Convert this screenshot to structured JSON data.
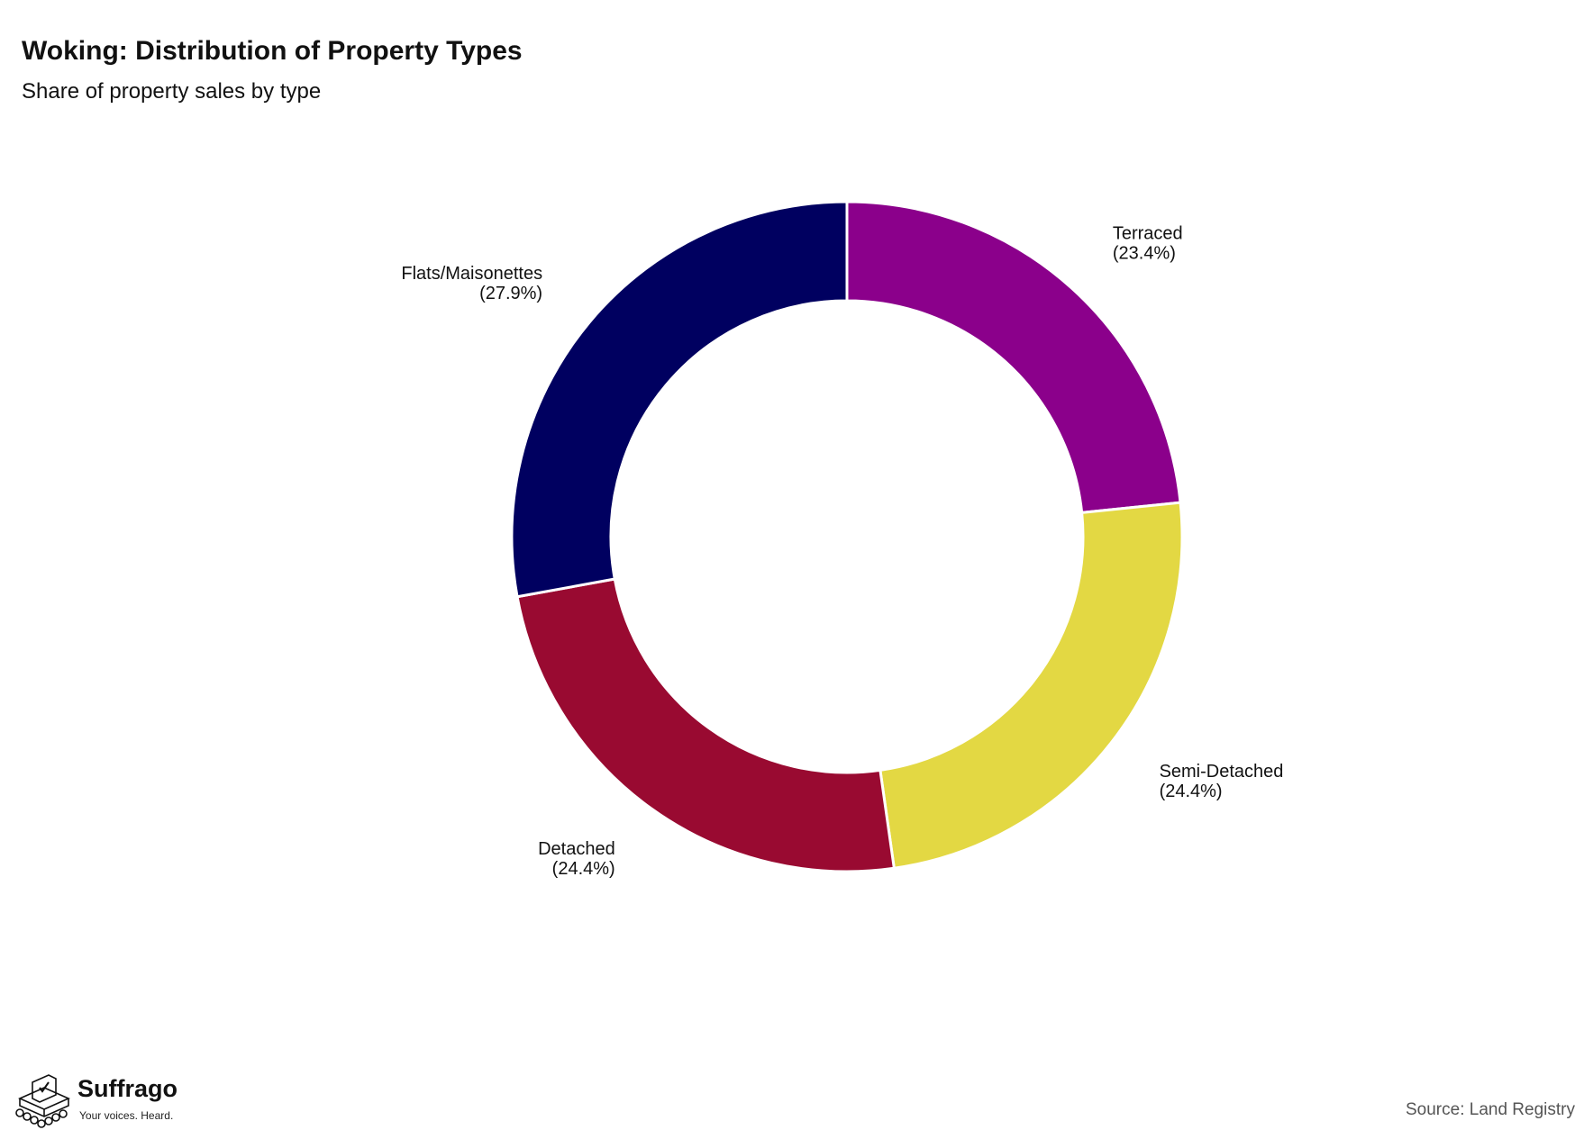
{
  "header": {
    "title": "Woking: Distribution of Property Types",
    "subtitle": "Share of property sales by type"
  },
  "chart_data": {
    "type": "pie",
    "title": "Woking: Distribution of Property Types",
    "subtitle": "Share of property sales by type",
    "donut": true,
    "start": "12 o'clock",
    "direction": "clockwise",
    "slices": [
      {
        "label": "Terraced",
        "pct_label": "(23.4%)",
        "value": 23.4,
        "color": "#8B008B",
        "label_side": "right"
      },
      {
        "label": "Semi-Detached",
        "pct_label": "(24.4%)",
        "value": 24.4,
        "color": "#E3D843",
        "label_side": "right"
      },
      {
        "label": "Detached",
        "pct_label": "(24.4%)",
        "value": 24.4,
        "color": "#990A31",
        "label_side": "left"
      },
      {
        "label": "Flats/Maisonettes",
        "pct_label": "(27.9%)",
        "value": 27.9,
        "color": "#000060",
        "label_side": "left"
      }
    ]
  },
  "footer": {
    "logo_name": "Suffrago",
    "logo_tagline": "Your voices. Heard.",
    "source": "Source: Land Registry"
  }
}
